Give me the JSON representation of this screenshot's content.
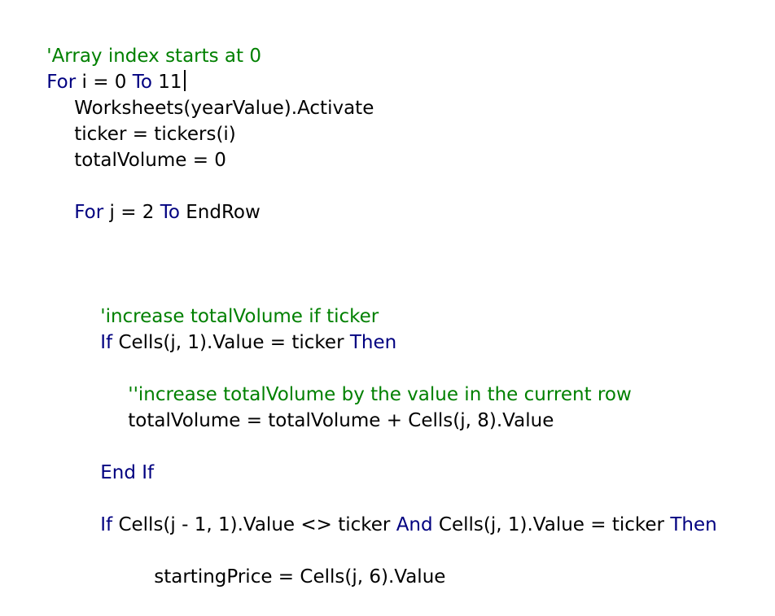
{
  "editor": {
    "colors": {
      "keyword": "#000080",
      "comment": "#008000",
      "text": "#000000",
      "background": "#ffffff"
    },
    "lines": [
      {
        "tokens": [
          {
            "type": "comment",
            "text": "'Array index starts at 0"
          }
        ]
      },
      {
        "tokens": [
          {
            "type": "keyword",
            "text": "For"
          },
          {
            "type": "text",
            "text": " i = 0 "
          },
          {
            "type": "keyword",
            "text": "To"
          },
          {
            "type": "text",
            "text": " 11"
          }
        ],
        "caret": true
      },
      {
        "tokens": [
          {
            "type": "text",
            "text": "Worksheets(yearValue).Activate"
          }
        ]
      },
      {
        "tokens": [
          {
            "type": "text",
            "text": "ticker = tickers(i)"
          }
        ]
      },
      {
        "tokens": [
          {
            "type": "text",
            "text": "totalVolume = 0"
          }
        ]
      },
      {
        "tokens": [
          {
            "type": "keyword",
            "text": "For"
          },
          {
            "type": "text",
            "text": " j = 2 "
          },
          {
            "type": "keyword",
            "text": "To"
          },
          {
            "type": "text",
            "text": " EndRow"
          }
        ]
      },
      {
        "tokens": [
          {
            "type": "comment",
            "text": "'increase totalVolume if ticker"
          }
        ]
      },
      {
        "tokens": [
          {
            "type": "keyword",
            "text": "If"
          },
          {
            "type": "text",
            "text": " Cells(j, 1).Value = ticker "
          },
          {
            "type": "keyword",
            "text": "Then"
          }
        ]
      },
      {
        "tokens": [
          {
            "type": "comment",
            "text": "''increase totalVolume by the value in the current row"
          }
        ]
      },
      {
        "tokens": [
          {
            "type": "text",
            "text": "totalVolume = totalVolume + Cells(j, 8).Value"
          }
        ]
      },
      {
        "tokens": [
          {
            "type": "keyword",
            "text": "End If"
          }
        ]
      },
      {
        "tokens": [
          {
            "type": "keyword",
            "text": "If"
          },
          {
            "type": "text",
            "text": " Cells(j - 1, 1).Value <> ticker "
          },
          {
            "type": "keyword",
            "text": "And"
          },
          {
            "type": "text",
            "text": " Cells(j, 1).Value = ticker "
          },
          {
            "type": "keyword",
            "text": "Then"
          }
        ]
      },
      {
        "tokens": [
          {
            "type": "text",
            "text": "startingPrice = Cells(j, 6).Value"
          }
        ]
      }
    ]
  }
}
